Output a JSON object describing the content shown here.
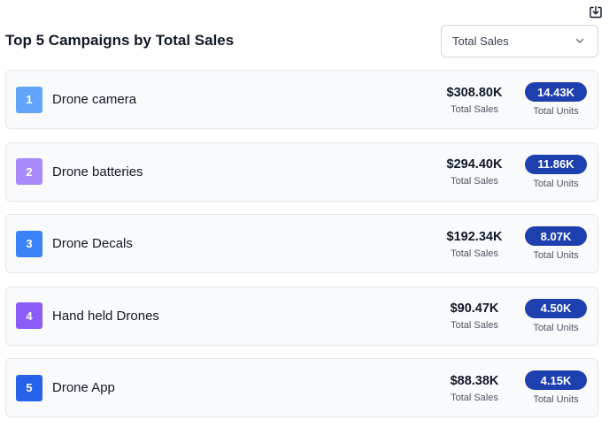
{
  "header": {
    "title": "Top 5 Campaigns by Total Sales",
    "metric_dropdown": {
      "selected": "Total Sales"
    },
    "download_icon": "download-icon"
  },
  "labels": {
    "sales": "Total Sales",
    "units": "Total Units"
  },
  "colors": {
    "badge": "#1e40af",
    "border": "#e5e7eb",
    "card_bg": "#f9fafb"
  },
  "campaigns": [
    {
      "rank": "1",
      "name": "Drone camera",
      "sales": "$308.80K",
      "units": "14.43K",
      "rank_color": "#60a5fa"
    },
    {
      "rank": "2",
      "name": "Drone batteries",
      "sales": "$294.40K",
      "units": "11.86K",
      "rank_color": "#a78bfa"
    },
    {
      "rank": "3",
      "name": "Drone Decals",
      "sales": "$192.34K",
      "units": "8.07K",
      "rank_color": "#3b82f6"
    },
    {
      "rank": "4",
      "name": "Hand held Drones",
      "sales": "$90.47K",
      "units": "4.50K",
      "rank_color": "#8b5cf6"
    },
    {
      "rank": "5",
      "name": "Drone App",
      "sales": "$88.38K",
      "units": "4.15K",
      "rank_color": "#2563eb"
    }
  ]
}
